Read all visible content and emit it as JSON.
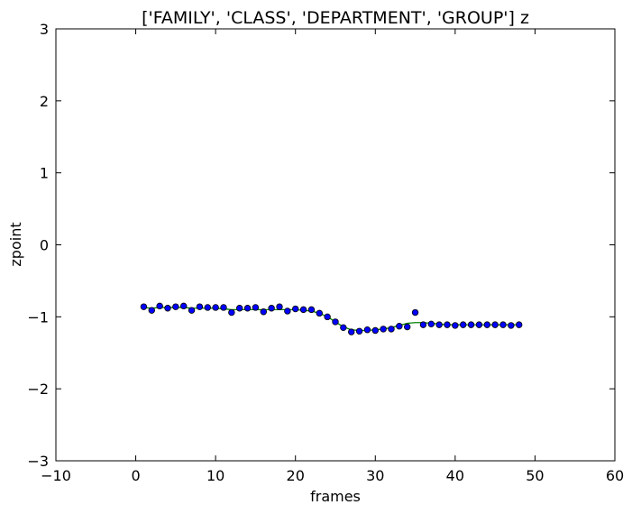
{
  "chart_data": {
    "type": "scatter",
    "title": "['FAMILY', 'CLASS', 'DEPARTMENT', 'GROUP'] z",
    "xlabel": "frames",
    "ylabel": "zpoint",
    "xlim": [
      -10,
      60
    ],
    "ylim": [
      -3,
      3
    ],
    "xticks": [
      -10,
      0,
      10,
      20,
      30,
      40,
      50,
      60
    ],
    "yticks": [
      -3,
      -2,
      -1,
      0,
      1,
      2,
      3
    ],
    "xtick_labels": [
      "−10",
      "0",
      "10",
      "20",
      "30",
      "40",
      "50",
      "60"
    ],
    "ytick_labels": [
      "−3",
      "−2",
      "−1",
      "0",
      "1",
      "2",
      "3"
    ],
    "grid": false,
    "legend": false,
    "series": [
      {
        "kind": "points",
        "color": "#0000ff",
        "edge_color": "#000000",
        "x": [
          1,
          2,
          3,
          4,
          5,
          6,
          7,
          8,
          9,
          10,
          11,
          12,
          13,
          14,
          15,
          16,
          17,
          18,
          19,
          20,
          21,
          22,
          23,
          24,
          25,
          26,
          27,
          28,
          29,
          30,
          31,
          32,
          33,
          34,
          35,
          36,
          37,
          38,
          39,
          40,
          41,
          42,
          43,
          44,
          45,
          46,
          47,
          48
        ],
        "y": [
          -0.86,
          -0.91,
          -0.85,
          -0.88,
          -0.86,
          -0.85,
          -0.91,
          -0.86,
          -0.87,
          -0.87,
          -0.87,
          -0.94,
          -0.88,
          -0.88,
          -0.87,
          -0.93,
          -0.88,
          -0.86,
          -0.92,
          -0.89,
          -0.9,
          -0.9,
          -0.95,
          -1.0,
          -1.07,
          -1.15,
          -1.21,
          -1.2,
          -1.18,
          -1.19,
          -1.17,
          -1.17,
          -1.13,
          -1.14,
          -0.94,
          -1.11,
          -1.1,
          -1.11,
          -1.11,
          -1.12,
          -1.11,
          -1.11,
          -1.11,
          -1.11,
          -1.11,
          -1.11,
          -1.12,
          -1.11
        ]
      },
      {
        "kind": "line",
        "color": "#008000",
        "x": [
          1,
          2,
          3,
          4,
          5,
          6,
          7,
          8,
          9,
          10,
          11,
          12,
          13,
          14,
          15,
          16,
          17,
          18,
          19,
          20,
          21,
          22,
          23,
          24,
          25,
          26,
          27,
          28,
          29,
          30,
          31,
          32,
          33,
          34,
          35,
          36,
          37,
          38,
          39,
          40,
          41,
          42,
          43,
          44,
          45,
          46,
          47,
          48
        ],
        "y": [
          -0.87,
          -0.88,
          -0.87,
          -0.87,
          -0.87,
          -0.87,
          -0.88,
          -0.88,
          -0.88,
          -0.88,
          -0.89,
          -0.9,
          -0.9,
          -0.9,
          -0.9,
          -0.9,
          -0.9,
          -0.9,
          -0.9,
          -0.9,
          -0.91,
          -0.92,
          -0.95,
          -1.0,
          -1.07,
          -1.14,
          -1.18,
          -1.19,
          -1.19,
          -1.18,
          -1.17,
          -1.15,
          -1.12,
          -1.09,
          -1.08,
          -1.08,
          -1.09,
          -1.1,
          -1.11,
          -1.11,
          -1.11,
          -1.11,
          -1.11,
          -1.11,
          -1.11,
          -1.11,
          -1.11,
          -1.11
        ]
      }
    ]
  }
}
